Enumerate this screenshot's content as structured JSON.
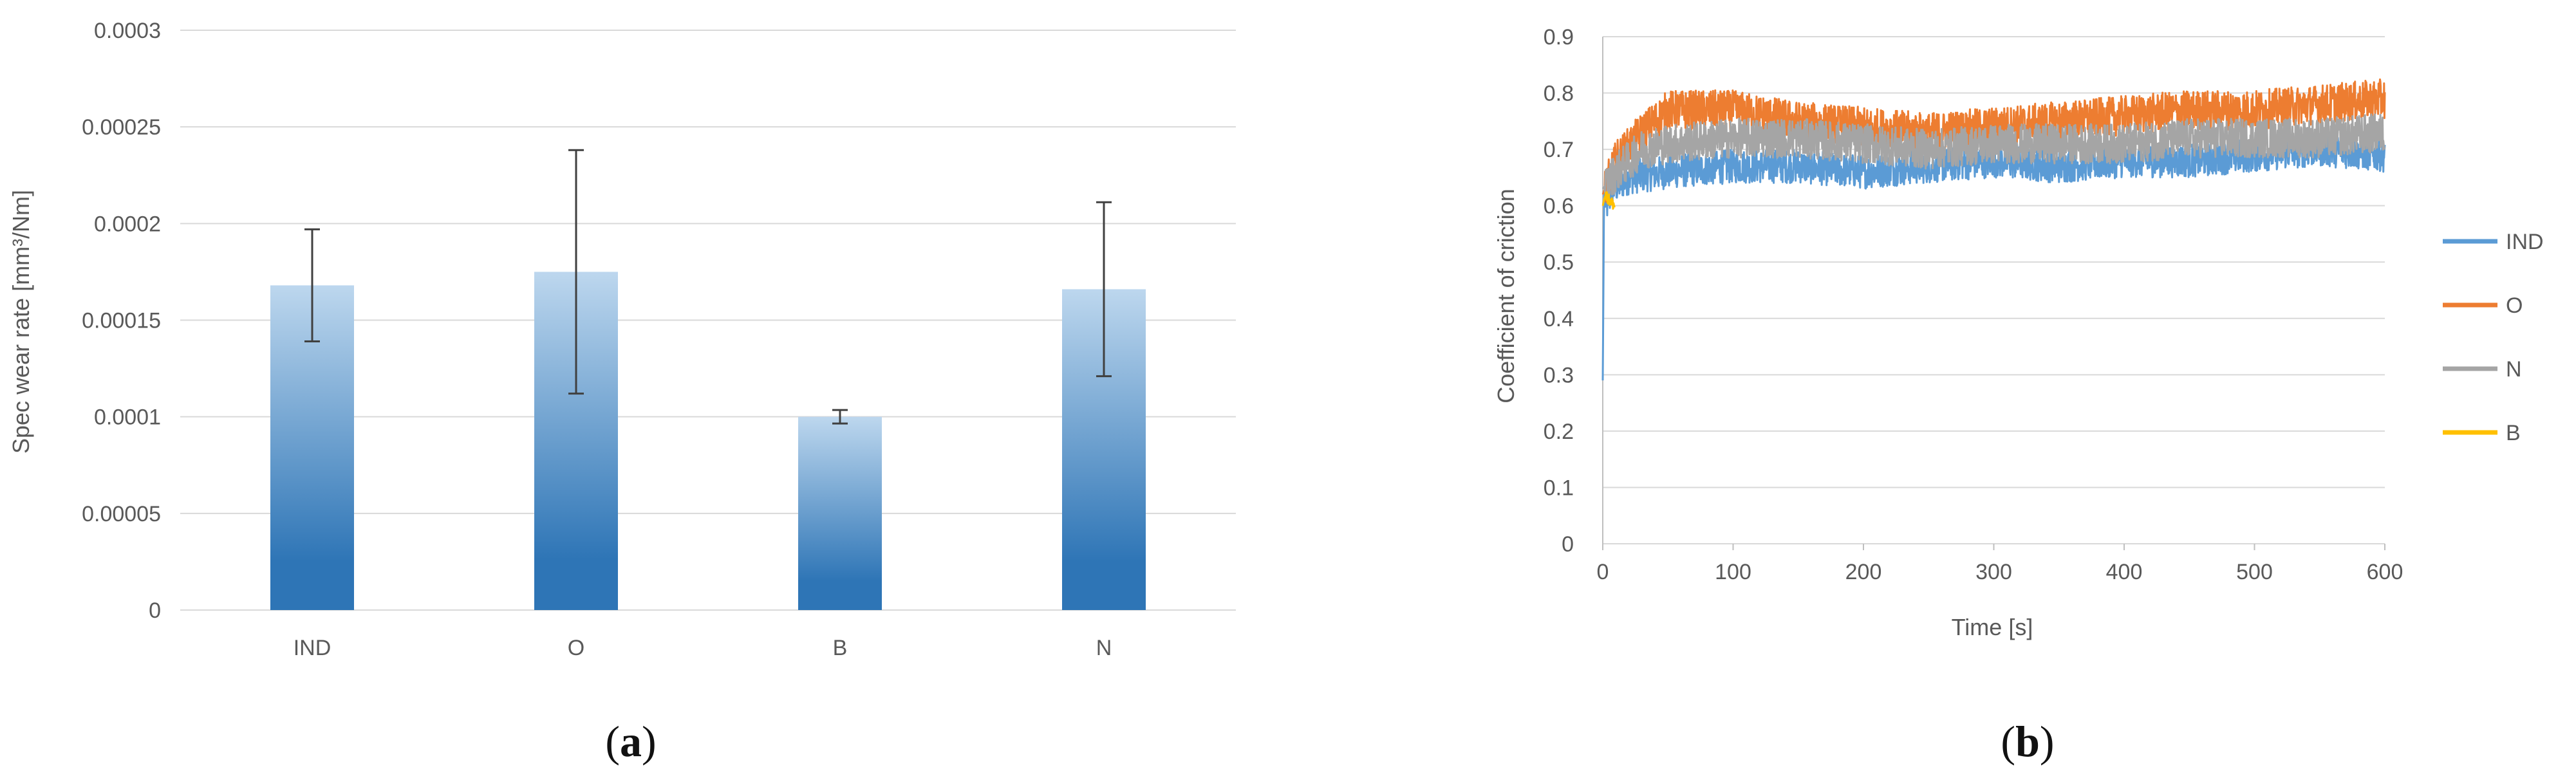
{
  "panels": {
    "a": {
      "label": "(a)",
      "label_letter": "a"
    },
    "b": {
      "label": "(b)",
      "label_letter": "b"
    }
  },
  "chart_data": [
    {
      "type": "bar",
      "categories": [
        "IND",
        "O",
        "B",
        "N"
      ],
      "values": [
        0.000168,
        0.000175,
        0.0001,
        0.000166
      ],
      "errors": [
        2.9e-05,
        6.3e-05,
        3.5e-06,
        4.5e-05
      ],
      "ylabel": "Spec wear rate [mm³/Nm]",
      "xlabel": "",
      "ylim": [
        0,
        0.0003
      ],
      "yticks": [
        "0",
        "0.00005",
        "0.0001",
        "0.00015",
        "0.0002",
        "0.00025",
        "0.0003"
      ],
      "grid": true,
      "bar_color_top": "#bdd7ee",
      "bar_color_bottom": "#2e75b6"
    },
    {
      "type": "line",
      "xlabel": "Time [s]",
      "ylabel": "Coefficient of criction",
      "xlim": [
        0,
        600
      ],
      "ylim": [
        0,
        0.9
      ],
      "xticks": [
        "0",
        "100",
        "200",
        "300",
        "400",
        "500",
        "600"
      ],
      "yticks": [
        "0",
        "0.1",
        "0.2",
        "0.3",
        "0.4",
        "0.5",
        "0.6",
        "0.7",
        "0.8",
        "0.9"
      ],
      "grid": true,
      "legend_position": "right",
      "series": [
        {
          "name": "IND",
          "color": "#5b9bd5",
          "x": [
            0,
            1,
            3,
            8,
            20,
            50,
            100,
            150,
            200,
            250,
            300,
            350,
            400,
            450,
            500,
            550,
            600
          ],
          "y": [
            0.29,
            0.62,
            0.6,
            0.63,
            0.65,
            0.66,
            0.67,
            0.67,
            0.66,
            0.67,
            0.68,
            0.67,
            0.68,
            0.68,
            0.69,
            0.7,
            0.69
          ],
          "noise": 0.03
        },
        {
          "name": "O",
          "color": "#ed7d31",
          "x": [
            0,
            10,
            30,
            50,
            100,
            150,
            200,
            250,
            300,
            350,
            400,
            450,
            500,
            550,
            600
          ],
          "y": [
            0.62,
            0.68,
            0.73,
            0.77,
            0.77,
            0.75,
            0.74,
            0.73,
            0.74,
            0.75,
            0.76,
            0.77,
            0.77,
            0.78,
            0.79
          ],
          "noise": 0.035
        },
        {
          "name": "N",
          "color": "#a5a5a5",
          "x": [
            0,
            10,
            30,
            50,
            100,
            150,
            200,
            250,
            300,
            350,
            400,
            450,
            500,
            550,
            600
          ],
          "y": [
            0.63,
            0.66,
            0.7,
            0.71,
            0.72,
            0.72,
            0.71,
            0.7,
            0.71,
            0.71,
            0.71,
            0.72,
            0.72,
            0.72,
            0.73
          ],
          "noise": 0.035
        },
        {
          "name": "B",
          "color": "#ffc000",
          "x": [
            0,
            2,
            5,
            9
          ],
          "y": [
            0.6,
            0.62,
            0.61,
            0.6
          ],
          "noise": 0.01
        }
      ]
    }
  ]
}
